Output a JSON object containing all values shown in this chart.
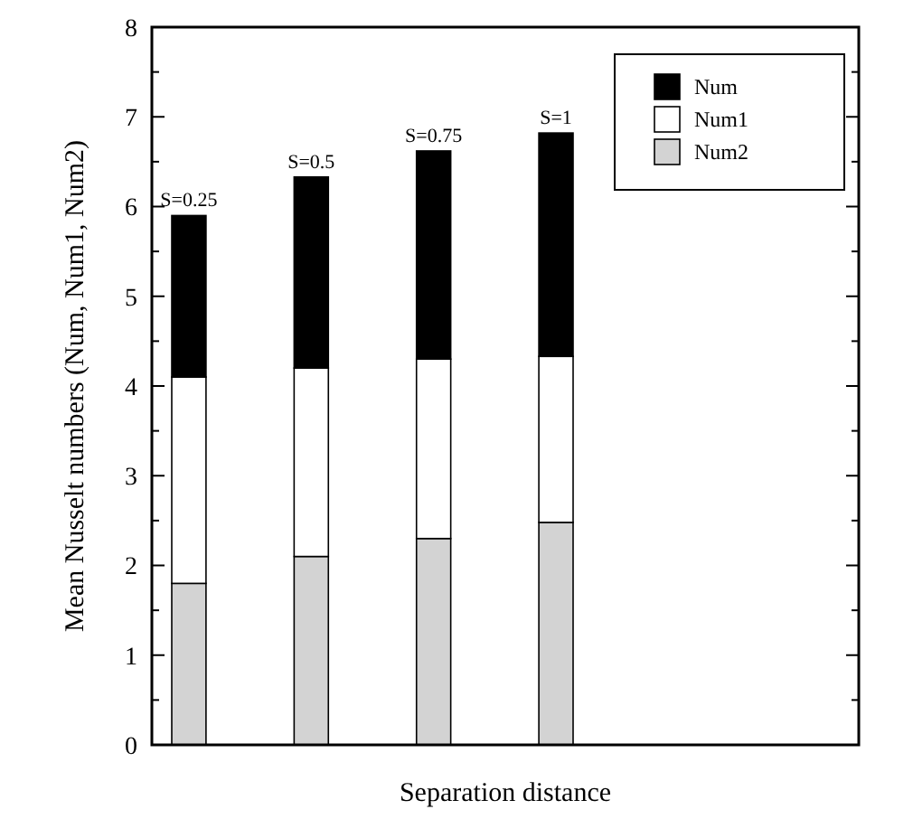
{
  "chart_data": {
    "type": "bar",
    "stacked": true,
    "xlabel": "Separation distance",
    "ylabel": "Mean Nusselt numbers (Num, Num1, Num2)",
    "categories": [
      null,
      null,
      null,
      null
    ],
    "series": [
      {
        "name": "Num2",
        "color": "#d3d3d3",
        "values": [
          1.8,
          2.1,
          2.3,
          2.48
        ]
      },
      {
        "name": "Num1",
        "color": "#ffffff",
        "values": [
          2.3,
          2.1,
          2.0,
          1.85
        ]
      },
      {
        "name": "Num",
        "color": "#000000",
        "values": [
          1.8,
          2.13,
          2.32,
          2.49
        ]
      }
    ],
    "ylim": [
      0,
      8
    ],
    "yticks": [
      0,
      1,
      2,
      3,
      4,
      5,
      6,
      7,
      8
    ],
    "annotations": [
      "S=0.25",
      "S=0.5",
      "S=0.75",
      "S=1"
    ],
    "legend": "top right",
    "grid": false
  }
}
